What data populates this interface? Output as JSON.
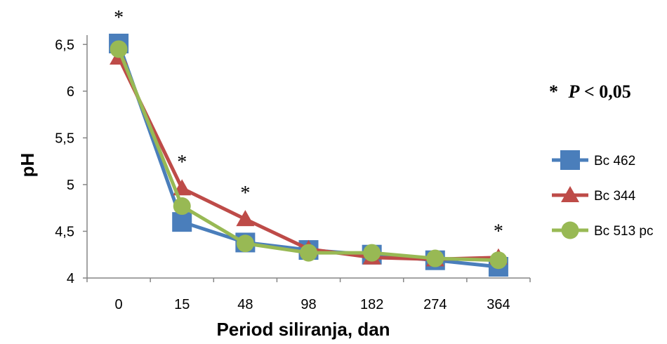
{
  "chart_data": {
    "type": "line",
    "xlabel": "Period siliranja, dan",
    "ylabel": "pH",
    "categories": [
      "0",
      "15",
      "48",
      "98",
      "182",
      "274",
      "364"
    ],
    "yticks": [
      "4",
      "4,5",
      "5",
      "5,5",
      "6",
      "6,5"
    ],
    "ylim": [
      4,
      6.6
    ],
    "grid": false,
    "legend_position": "right",
    "series": [
      {
        "name": "Bc 462",
        "color": "#4a7ebb",
        "marker": "square",
        "values": [
          6.51,
          4.6,
          4.38,
          4.3,
          4.25,
          4.19,
          4.12
        ]
      },
      {
        "name": "Bc 344",
        "color": "#be4b48",
        "marker": "triangle",
        "values": [
          6.36,
          4.96,
          4.63,
          4.31,
          4.22,
          4.2,
          4.22
        ]
      },
      {
        "name": "Bc 513 pc",
        "color": "#98b954",
        "marker": "circle",
        "values": [
          6.45,
          4.77,
          4.37,
          4.27,
          4.27,
          4.21,
          4.19
        ]
      }
    ],
    "significance_markers": {
      "symbol": "*",
      "categories": [
        "0",
        "15",
        "48",
        "364"
      ]
    },
    "annotation": {
      "star": "*",
      "p_label": "P",
      "p_text": " < 0,05"
    }
  }
}
